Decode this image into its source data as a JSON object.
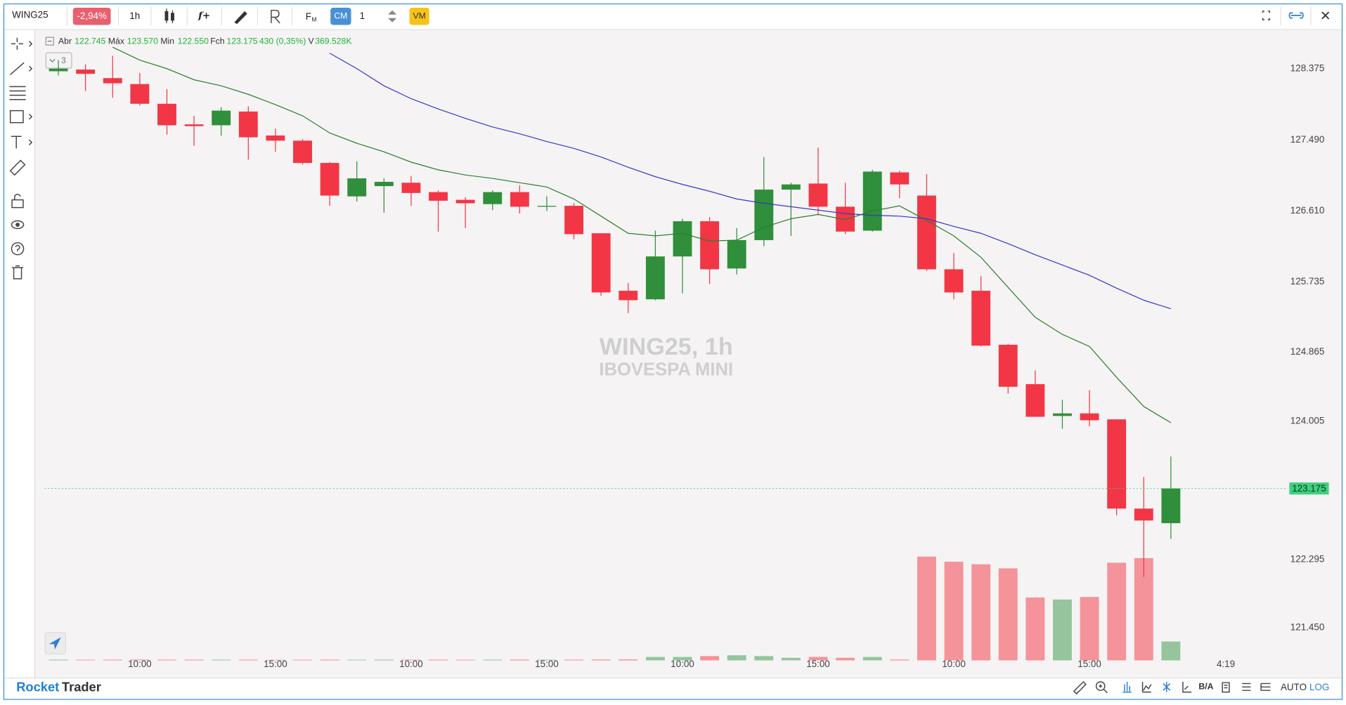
{
  "toolbar": {
    "symbol": "WING25",
    "change": "-2,94%",
    "interval": "1h",
    "indicator": "f+",
    "fm_main": "F",
    "fm_sub": "M",
    "cm": "CM",
    "quantity": "1",
    "vm": "VM"
  },
  "header": {
    "open_label": "Abr",
    "open": "122.745",
    "high_label": "Máx",
    "high": "123.570",
    "low_label": "Min",
    "low": "122.550",
    "close_label": "Fch",
    "close": "123.175",
    "change": "430 (0,35%)",
    "volume_label": "V",
    "volume": "369.528K",
    "collapse_count": "3"
  },
  "footer": {
    "brand_1": "Rocket",
    "brand_2": "Trader",
    "bid_ask": "B/A",
    "auto": "AUTO",
    "log": "LOG"
  },
  "countdown": "4:19",
  "chart_data": {
    "type": "candlestick",
    "title": "WING25, 1h",
    "subtitle": "IBOVESPA MINI",
    "categories": [
      null,
      null,
      null,
      "10:00",
      null,
      null,
      null,
      null,
      "15:00",
      null,
      null,
      null,
      null,
      "10:00",
      null,
      null,
      null,
      null,
      "15:00",
      null,
      null,
      null,
      null,
      "10:00",
      null,
      null,
      null,
      null,
      "15:00",
      null,
      null,
      null,
      null,
      "10:00",
      null,
      null,
      null,
      null,
      "15:00",
      null,
      null,
      null
    ],
    "open": [
      128.343,
      128.364,
      128.258,
      128.184,
      127.94,
      127.685,
      127.674,
      127.844,
      127.547,
      127.483,
      127.207,
      126.793,
      126.92,
      126.962,
      126.846,
      126.75,
      126.697,
      126.846,
      126.665,
      126.676,
      126.336,
      125.624,
      125.518,
      126.049,
      126.485,
      125.9,
      126.251,
      126.877,
      126.952,
      126.665,
      126.368,
      127.09,
      126.803,
      125.89,
      125.624,
      124.955,
      124.467,
      124.073,
      124.105,
      124.031,
      122.926,
      122.745
    ],
    "high": [
      128.481,
      128.428,
      128.534,
      128.322,
      128.12,
      127.791,
      127.897,
      127.908,
      127.632,
      127.504,
      127.217,
      127.228,
      127.016,
      127.047,
      126.867,
      126.782,
      126.867,
      126.931,
      126.793,
      126.708,
      126.336,
      125.72,
      126.368,
      126.516,
      126.538,
      126.4,
      127.281,
      126.962,
      127.398,
      126.962,
      127.122,
      127.111,
      127.069,
      126.091,
      125.805,
      124.966,
      124.636,
      124.275,
      124.392,
      124.031,
      123.319,
      123.57
    ],
    "low": [
      128.29,
      128.099,
      128.014,
      127.918,
      127.557,
      127.419,
      127.547,
      127.249,
      127.345,
      127.185,
      126.676,
      126.729,
      126.591,
      126.676,
      126.357,
      126.4,
      126.623,
      126.58,
      126.612,
      126.261,
      125.56,
      125.348,
      125.507,
      125.592,
      125.709,
      125.826,
      126.176,
      126.304,
      126.559,
      126.325,
      126.357,
      126.771,
      125.868,
      125.518,
      124.934,
      124.35,
      124.063,
      123.914,
      123.946,
      122.842,
      122.077,
      122.55
    ],
    "close": [
      128.375,
      128.311,
      128.194,
      127.94,
      127.674,
      127.663,
      127.855,
      127.525,
      127.483,
      127.207,
      126.803,
      127.016,
      126.973,
      126.835,
      126.739,
      126.708,
      126.846,
      126.665,
      126.676,
      126.325,
      125.603,
      125.507,
      126.049,
      126.485,
      125.89,
      126.251,
      126.877,
      126.941,
      126.665,
      126.357,
      127.1,
      126.941,
      125.89,
      125.603,
      124.944,
      124.435,
      124.063,
      124.105,
      124.02,
      122.926,
      122.778,
      123.175
    ],
    "volume": [
      15000,
      12000,
      14000,
      16000,
      14000,
      15000,
      13000,
      14000,
      10000,
      12000,
      15000,
      12000,
      14000,
      13000,
      15000,
      12000,
      14000,
      16000,
      13000,
      15000,
      17000,
      20000,
      67000,
      67000,
      84000,
      100000,
      84000,
      50000,
      67000,
      50000,
      67000,
      17000,
      2030000,
      1930000,
      1880000,
      1800000,
      1230000,
      1190000,
      1240000,
      1910000,
      2000000,
      369528
    ],
    "overlays": [
      {
        "color": "#2e7d32",
        "values": [
          null,
          null,
          128.641,
          128.481,
          128.375,
          128.237,
          128.163,
          128.056,
          127.929,
          127.791,
          127.578,
          127.451,
          127.345,
          127.217,
          127.122,
          127.058,
          127.016,
          126.962,
          126.909,
          126.761,
          126.548,
          126.336,
          126.304,
          126.336,
          126.24,
          126.251,
          126.41,
          126.516,
          126.569,
          126.506,
          126.612,
          126.676,
          126.495,
          126.304,
          126.039,
          125.667,
          125.295,
          125.083,
          124.934,
          124.551,
          124.19,
          123.989
        ]
      },
      {
        "color": "#3838c8",
        "values": [
          null,
          null,
          null,
          null,
          null,
          null,
          null,
          null,
          null,
          null,
          128.566,
          128.375,
          128.163,
          128.003,
          127.876,
          127.759,
          127.653,
          127.568,
          127.472,
          127.387,
          127.281,
          127.154,
          127.037,
          126.941,
          126.856,
          126.761,
          126.708,
          126.665,
          126.623,
          126.58,
          126.559,
          126.548,
          126.516,
          126.421,
          126.336,
          126.208,
          126.07,
          125.943,
          125.815,
          125.656,
          125.507,
          125.401
        ]
      }
    ],
    "up_color": "#2f8f3a",
    "down_color": "#f23645",
    "volume_up_color": "#95c49d",
    "volume_down_color": "#f4939a",
    "last_price_color": "#3fd07f",
    "ylim": [
      121.05,
      128.85
    ],
    "yticks": [
      128.375,
      {
        "value": 127.49,
        "label": "127.490"
      },
      {
        "value": 126.61,
        "label": "126.610"
      },
      125.735,
      124.865,
      124.005,
      122.295,
      {
        "value": 121.45,
        "label": "121.450"
      }
    ],
    "grid": false
  }
}
